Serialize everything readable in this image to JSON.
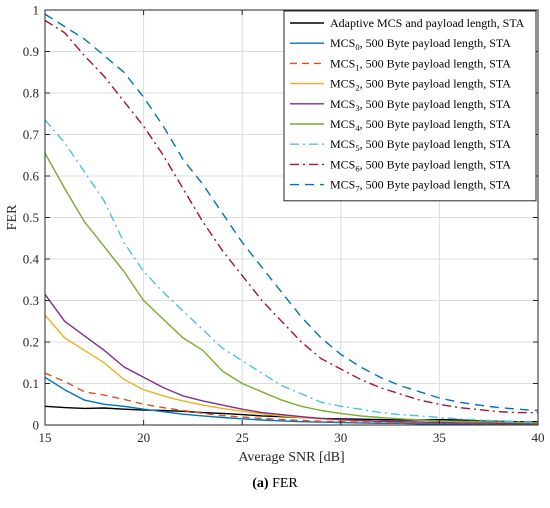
{
  "caption": {
    "panel": "(a)",
    "text": "FER"
  },
  "chart_data": {
    "type": "line",
    "xlabel": "Average SNR [dB]",
    "ylabel": "FER",
    "xlim": [
      15,
      40
    ],
    "ylim": [
      0,
      1
    ],
    "xticks": [
      15,
      20,
      25,
      30,
      35,
      40
    ],
    "yticks": [
      0,
      0.1,
      0.2,
      0.3,
      0.4,
      0.5,
      0.6,
      0.7,
      0.8,
      0.9,
      1
    ],
    "grid": true,
    "legend_position": "top-right",
    "x": [
      15,
      16,
      17,
      18,
      19,
      20,
      21,
      22,
      23,
      24,
      25,
      26,
      27,
      28,
      29,
      30,
      31,
      32,
      33,
      34,
      35,
      36,
      37,
      38,
      39,
      40
    ],
    "series": [
      {
        "name": "Adaptive MCS and payload length, STA",
        "sub": "",
        "suffix": "",
        "color": "#000000",
        "dash": "",
        "values": [
          0.045,
          0.042,
          0.04,
          0.041,
          0.038,
          0.036,
          0.035,
          0.033,
          0.03,
          0.028,
          0.025,
          0.022,
          0.02,
          0.018,
          0.016,
          0.015,
          0.014,
          0.013,
          0.012,
          0.012,
          0.013,
          0.012,
          0.01,
          0.009,
          0.008,
          0.008
        ]
      },
      {
        "name": "MCS",
        "sub": "0",
        "suffix": ", 500 Byte payload length, STA",
        "color": "#0072BD",
        "dash": "",
        "values": [
          0.115,
          0.085,
          0.06,
          0.05,
          0.045,
          0.038,
          0.032,
          0.026,
          0.022,
          0.018,
          0.015,
          0.012,
          0.01,
          0.008,
          0.007,
          0.006,
          0.005,
          0.004,
          0.004,
          0.003,
          0.003,
          0.003,
          0.002,
          0.002,
          0.002,
          0.002
        ]
      },
      {
        "name": "MCS",
        "sub": "1",
        "suffix": ", 500 Byte payload length, STA",
        "color": "#D95319",
        "dash": "7,5",
        "values": [
          0.125,
          0.105,
          0.08,
          0.072,
          0.062,
          0.05,
          0.042,
          0.035,
          0.028,
          0.023,
          0.019,
          0.016,
          0.013,
          0.011,
          0.009,
          0.008,
          0.007,
          0.006,
          0.005,
          0.005,
          0.004,
          0.004,
          0.003,
          0.003,
          0.003,
          0.003
        ]
      },
      {
        "name": "MCS",
        "sub": "2",
        "suffix": ", 500 Byte payload length, STA",
        "color": "#EDB120",
        "dash": "",
        "values": [
          0.265,
          0.21,
          0.18,
          0.15,
          0.11,
          0.085,
          0.07,
          0.058,
          0.048,
          0.04,
          0.033,
          0.027,
          0.022,
          0.018,
          0.015,
          0.012,
          0.01,
          0.009,
          0.008,
          0.007,
          0.006,
          0.005,
          0.005,
          0.004,
          0.004,
          0.004
        ]
      },
      {
        "name": "MCS",
        "sub": "3",
        "suffix": ", 500 Byte payload length, STA",
        "color": "#7E2F8E",
        "dash": "",
        "values": [
          0.315,
          0.25,
          0.215,
          0.18,
          0.14,
          0.115,
          0.09,
          0.07,
          0.058,
          0.048,
          0.038,
          0.03,
          0.025,
          0.02,
          0.016,
          0.013,
          0.011,
          0.009,
          0.008,
          0.007,
          0.006,
          0.005,
          0.005,
          0.004,
          0.004,
          0.004
        ]
      },
      {
        "name": "MCS",
        "sub": "4",
        "suffix": ", 500 Byte payload length, STA",
        "color": "#77AC30",
        "dash": "",
        "values": [
          0.655,
          0.57,
          0.49,
          0.43,
          0.37,
          0.3,
          0.255,
          0.21,
          0.18,
          0.13,
          0.1,
          0.08,
          0.06,
          0.045,
          0.035,
          0.028,
          0.022,
          0.018,
          0.015,
          0.012,
          0.01,
          0.009,
          0.008,
          0.007,
          0.006,
          0.005
        ]
      },
      {
        "name": "MCS",
        "sub": "5",
        "suffix": ", 500 Byte payload length, STA",
        "color": "#4DBEEE",
        "dash": "9,4,2,4",
        "values": [
          0.735,
          0.68,
          0.61,
          0.54,
          0.44,
          0.37,
          0.32,
          0.275,
          0.23,
          0.185,
          0.155,
          0.125,
          0.095,
          0.075,
          0.055,
          0.045,
          0.038,
          0.03,
          0.025,
          0.022,
          0.018,
          0.015,
          0.012,
          0.01,
          0.008,
          0.007
        ]
      },
      {
        "name": "MCS",
        "sub": "6",
        "suffix": ", 500 Byte payload length, STA",
        "color": "#A2142F",
        "dash": "9,4,2,4",
        "values": [
          0.975,
          0.945,
          0.89,
          0.84,
          0.78,
          0.72,
          0.65,
          0.57,
          0.49,
          0.42,
          0.36,
          0.3,
          0.25,
          0.2,
          0.16,
          0.135,
          0.11,
          0.09,
          0.075,
          0.06,
          0.05,
          0.042,
          0.037,
          0.032,
          0.03,
          0.03
        ]
      },
      {
        "name": "MCS",
        "sub": "7",
        "suffix": ", 500 Byte payload length, STA",
        "color": "#0072BD",
        "dash": "9,6",
        "values": [
          0.99,
          0.96,
          0.93,
          0.89,
          0.85,
          0.79,
          0.72,
          0.64,
          0.58,
          0.51,
          0.44,
          0.38,
          0.32,
          0.26,
          0.21,
          0.17,
          0.14,
          0.115,
          0.095,
          0.08,
          0.065,
          0.055,
          0.048,
          0.042,
          0.038,
          0.035
        ]
      }
    ]
  }
}
